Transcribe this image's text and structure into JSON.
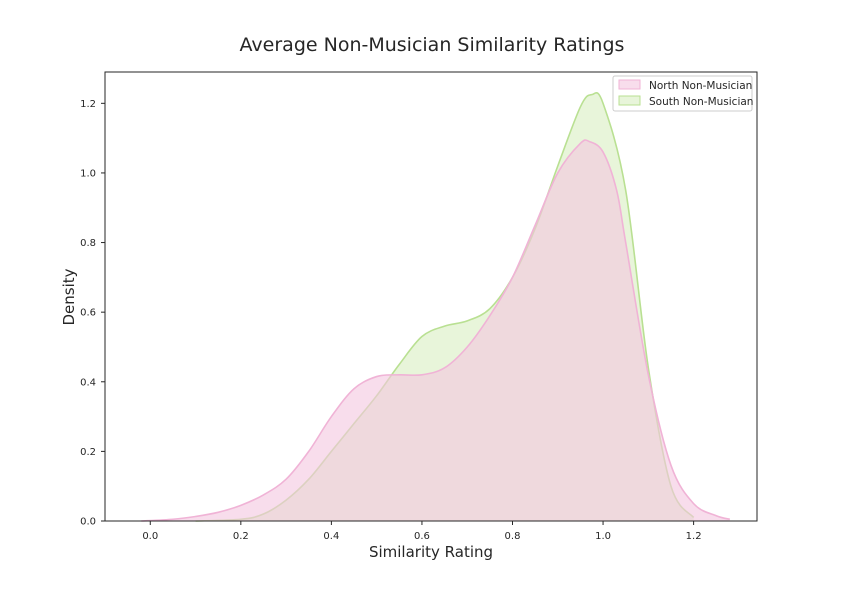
{
  "chart_data": {
    "type": "area",
    "title": "Average Non-Musician Similarity Ratings",
    "xlabel": "Similarity Rating",
    "ylabel": "Density",
    "xlim": [
      -0.1,
      1.34
    ],
    "ylim": [
      0.0,
      1.29
    ],
    "xticks": [
      "0.0",
      "0.2",
      "0.4",
      "0.6",
      "0.8",
      "1.0",
      "1.2"
    ],
    "yticks": [
      "0.0",
      "0.2",
      "0.4",
      "0.6",
      "0.8",
      "1.0",
      "1.2"
    ],
    "grid": false,
    "legend_position": "top-right",
    "series": [
      {
        "name": "North Non-Musician",
        "fill": "#f4c7df",
        "stroke": "#f0b3d6",
        "x": [
          -0.02,
          0.05,
          0.1,
          0.15,
          0.2,
          0.25,
          0.3,
          0.35,
          0.4,
          0.45,
          0.5,
          0.55,
          0.6,
          0.65,
          0.7,
          0.75,
          0.8,
          0.85,
          0.9,
          0.95,
          0.97,
          1.0,
          1.03,
          1.05,
          1.1,
          1.15,
          1.2,
          1.25,
          1.28
        ],
        "y": [
          0.0,
          0.005,
          0.013,
          0.025,
          0.045,
          0.075,
          0.12,
          0.2,
          0.3,
          0.38,
          0.415,
          0.42,
          0.42,
          0.44,
          0.5,
          0.59,
          0.7,
          0.85,
          1.0,
          1.085,
          1.09,
          1.06,
          0.95,
          0.8,
          0.42,
          0.16,
          0.05,
          0.015,
          0.005
        ]
      },
      {
        "name": "South Non-Musician",
        "fill": "#d9efc2",
        "stroke": "#b9e092",
        "x": [
          0.1,
          0.2,
          0.25,
          0.3,
          0.35,
          0.4,
          0.45,
          0.5,
          0.55,
          0.6,
          0.65,
          0.7,
          0.75,
          0.8,
          0.85,
          0.9,
          0.95,
          0.975,
          1.0,
          1.05,
          1.1,
          1.15,
          1.2
        ],
        "y": [
          0.0,
          0.005,
          0.02,
          0.06,
          0.12,
          0.2,
          0.28,
          0.36,
          0.45,
          0.53,
          0.56,
          0.575,
          0.61,
          0.7,
          0.84,
          1.02,
          1.19,
          1.225,
          1.2,
          0.95,
          0.44,
          0.1,
          0.01
        ]
      }
    ]
  }
}
